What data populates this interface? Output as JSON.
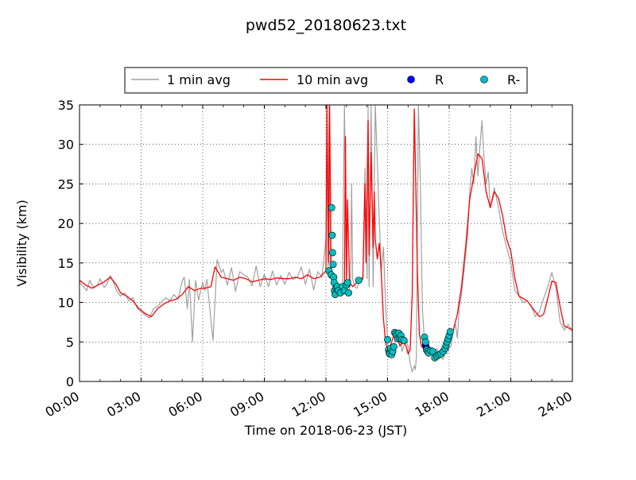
{
  "chart_data": {
    "type": "line",
    "title": "pwd52_20180623.txt",
    "xlabel": "Time on 2018-06-23 (JST)",
    "ylabel": "Visibility (km)",
    "xlim": [
      0,
      24
    ],
    "ylim": [
      0,
      35
    ],
    "x_ticks": [
      0,
      3,
      6,
      9,
      12,
      15,
      18,
      21,
      24
    ],
    "x_tick_labels": [
      "00:00",
      "03:00",
      "06:00",
      "09:00",
      "12:00",
      "15:00",
      "18:00",
      "21:00",
      "24:00"
    ],
    "y_ticks": [
      0,
      5,
      10,
      15,
      20,
      25,
      30,
      35
    ],
    "y_tick_labels": [
      "0",
      "5",
      "10",
      "15",
      "20",
      "25",
      "30",
      "35"
    ],
    "grid": true,
    "legend_position": "top",
    "series": [
      {
        "name": "1 min avg",
        "kind": "line",
        "color": "#a0a0a0",
        "x": [
          0,
          0.2,
          0.35,
          0.5,
          0.7,
          0.9,
          1.0,
          1.2,
          1.35,
          1.5,
          1.65,
          1.8,
          2.0,
          2.2,
          2.4,
          2.6,
          2.8,
          3.0,
          3.2,
          3.4,
          3.6,
          3.8,
          4.0,
          4.2,
          4.4,
          4.6,
          4.8,
          5.0,
          5.1,
          5.25,
          5.35,
          5.5,
          5.65,
          5.8,
          6.0,
          6.1,
          6.2,
          6.3,
          6.5,
          6.7,
          6.9,
          7.0,
          7.2,
          7.4,
          7.6,
          7.8,
          8.0,
          8.2,
          8.4,
          8.6,
          8.8,
          9.0,
          9.2,
          9.4,
          9.6,
          9.8,
          10.0,
          10.2,
          10.4,
          10.6,
          10.8,
          11.0,
          11.2,
          11.4,
          11.6,
          11.8,
          12.0,
          12.05,
          12.1,
          12.15,
          12.2,
          12.3,
          12.4,
          12.5,
          12.6,
          12.7,
          12.8,
          12.9,
          13.0,
          13.1,
          13.2,
          13.25,
          13.3,
          13.4,
          13.5,
          13.6,
          13.7,
          13.8,
          13.9,
          14.0,
          14.05,
          14.1,
          14.2,
          14.3,
          14.4,
          14.5,
          14.6,
          14.7,
          14.8,
          14.9,
          15.0,
          15.1,
          15.2,
          15.3,
          15.4,
          15.5,
          15.6,
          15.7,
          15.8,
          15.9,
          16.0,
          16.1,
          16.2,
          16.3,
          16.35,
          16.4,
          16.5,
          16.6,
          16.7,
          16.8,
          16.9,
          17.0,
          17.1,
          17.2,
          17.3,
          17.4,
          17.5,
          17.6,
          17.7,
          17.8,
          17.9,
          18.0,
          18.1,
          18.2,
          18.3,
          18.4,
          18.5,
          18.6,
          18.7,
          18.8,
          18.9,
          19.0,
          19.1,
          19.2,
          19.3,
          19.4,
          19.5,
          19.6,
          19.7,
          19.8,
          19.9,
          20.0,
          20.2,
          20.4,
          20.6,
          20.8,
          21.0,
          21.2,
          21.4,
          21.6,
          21.8,
          22.0,
          22.2,
          22.4,
          22.6,
          22.8,
          23.0,
          23.2,
          23.4,
          23.6,
          23.8,
          24.0
        ],
        "y": [
          12.5,
          12.0,
          11.5,
          12.8,
          11.8,
          12.3,
          13.0,
          11.9,
          12.4,
          13.4,
          12.6,
          11.5,
          10.8,
          11.2,
          10.2,
          10.6,
          9.3,
          8.8,
          8.4,
          8.0,
          9.2,
          9.5,
          10.1,
          10.6,
          10.2,
          11.0,
          10.4,
          12.7,
          13.2,
          9.2,
          12.9,
          5.0,
          12.8,
          10.3,
          12.6,
          11.5,
          12.9,
          10.3,
          5.2,
          15.4,
          13.8,
          14.2,
          12.2,
          14.4,
          11.4,
          13.9,
          13.5,
          13.2,
          12.1,
          14.6,
          12.0,
          13.6,
          12.0,
          14.0,
          12.2,
          13.4,
          12.3,
          13.8,
          12.9,
          13.2,
          14.5,
          12.3,
          14.2,
          11.6,
          13.9,
          13.2,
          18.0,
          35.0,
          14.0,
          35.0,
          15.0,
          13.0,
          11.0,
          11.8,
          12.5,
          11.2,
          12.0,
          35.0,
          12.0,
          11.0,
          12.5,
          25.0,
          13.0,
          12.0,
          11.8,
          12.5,
          12.8,
          13.5,
          27.0,
          13.0,
          35.0,
          12.0,
          35.0,
          12.0,
          35.0,
          28.0,
          20.0,
          14.0,
          17.0,
          10.0,
          5.0,
          3.2,
          4.0,
          4.6,
          5.5,
          6.2,
          5.8,
          3.8,
          4.6,
          5.2,
          4.5,
          2.3,
          1.2,
          2.0,
          1.5,
          3.0,
          35.0,
          25.0,
          9.0,
          5.0,
          3.8,
          4.2,
          3.5,
          4.0,
          3.2,
          4.2,
          3.4,
          3.0,
          2.8,
          3.6,
          3.5,
          4.2,
          4.5,
          6.5,
          7.2,
          5.5,
          9.5,
          11.0,
          13.5,
          16.0,
          18.5,
          24.0,
          27.0,
          25.0,
          31.0,
          26.0,
          30.0,
          33.0,
          28.0,
          25.0,
          26.5,
          22.0,
          24.5,
          22.0,
          19.0,
          17.0,
          15.0,
          11.5,
          10.8,
          10.0,
          10.2,
          9.5,
          8.2,
          8.9,
          10.5,
          12.0,
          13.8,
          11.8,
          7.5,
          6.5,
          7.2,
          6.4
        ]
      },
      {
        "name": "10 min avg",
        "kind": "line",
        "color": "#ff0000",
        "x": [
          0,
          0.3,
          0.6,
          0.9,
          1.2,
          1.5,
          1.8,
          2.0,
          2.3,
          2.6,
          2.9,
          3.2,
          3.5,
          3.8,
          4.1,
          4.4,
          4.7,
          5.0,
          5.3,
          5.6,
          5.9,
          6.1,
          6.4,
          6.6,
          6.9,
          7.2,
          7.5,
          7.8,
          8.1,
          8.4,
          8.7,
          9.0,
          9.3,
          9.6,
          9.9,
          10.2,
          10.5,
          10.8,
          11.1,
          11.4,
          11.7,
          12.0,
          12.05,
          12.12,
          12.18,
          12.25,
          12.35,
          12.5,
          12.7,
          12.9,
          12.95,
          13.0,
          13.05,
          13.15,
          13.3,
          13.5,
          13.7,
          13.8,
          13.9,
          13.95,
          14.05,
          14.1,
          14.2,
          14.3,
          14.35,
          14.4,
          14.5,
          14.6,
          14.7,
          14.8,
          14.9,
          15.0,
          15.1,
          15.2,
          15.3,
          15.4,
          15.5,
          15.6,
          15.7,
          15.8,
          15.9,
          16.0,
          16.1,
          16.2,
          16.3,
          16.35,
          16.45,
          16.55,
          16.65,
          16.8,
          17.0,
          17.2,
          17.4,
          17.6,
          17.8,
          18.0,
          18.2,
          18.4,
          18.6,
          18.8,
          19.0,
          19.2,
          19.4,
          19.6,
          19.8,
          20.0,
          20.2,
          20.4,
          20.6,
          20.8,
          21.0,
          21.2,
          21.4,
          21.6,
          21.8,
          22.0,
          22.2,
          22.4,
          22.6,
          22.8,
          23.0,
          23.2,
          23.4,
          23.6,
          23.8,
          24.0
        ],
        "y": [
          12.8,
          12.2,
          11.8,
          12.2,
          12.6,
          13.2,
          12.2,
          11.2,
          10.8,
          10.2,
          9.2,
          8.6,
          8.2,
          9.2,
          9.8,
          10.2,
          10.4,
          11.0,
          12.0,
          11.5,
          11.8,
          11.8,
          12.0,
          14.5,
          13.2,
          13.0,
          12.8,
          13.2,
          13.0,
          12.6,
          12.8,
          13.0,
          12.9,
          13.1,
          13.0,
          13.0,
          13.2,
          13.0,
          13.5,
          13.0,
          13.2,
          14.0,
          35.0,
          15.0,
          35.0,
          14.0,
          12.0,
          11.8,
          12.0,
          12.5,
          31.0,
          13.0,
          23.0,
          12.5,
          12.0,
          12.5,
          12.8,
          13.0,
          25.0,
          15.0,
          33.0,
          16.0,
          29.0,
          17.0,
          24.0,
          18.0,
          15.5,
          17.5,
          13.5,
          8.0,
          5.0,
          4.0,
          4.3,
          5.0,
          5.8,
          6.0,
          5.5,
          4.5,
          4.8,
          5.0,
          4.5,
          3.5,
          4.0,
          11.0,
          34.5,
          28.0,
          14.0,
          6.0,
          4.5,
          4.0,
          3.8,
          3.6,
          3.4,
          3.6,
          4.0,
          5.0,
          6.5,
          8.5,
          12.0,
          17.0,
          23.0,
          26.0,
          28.8,
          28.2,
          24.0,
          22.0,
          24.0,
          23.2,
          21.0,
          18.0,
          16.5,
          13.0,
          10.8,
          10.5,
          10.2,
          9.5,
          8.8,
          8.2,
          8.5,
          10.5,
          12.7,
          12.5,
          9.5,
          7.0,
          6.8,
          6.5
        ]
      },
      {
        "name": "R",
        "kind": "points",
        "color": "#0000ff",
        "x": [
          16.85,
          16.9
        ],
        "y": [
          4.6,
          4.2
        ]
      },
      {
        "name": "R-",
        "kind": "points",
        "color": "#00bfbf",
        "x": [
          12.15,
          12.25,
          12.28,
          12.3,
          12.32,
          12.35,
          12.38,
          12.4,
          12.42,
          12.45,
          12.5,
          12.55,
          12.6,
          12.7,
          12.8,
          12.9,
          13.0,
          13.05,
          13.1,
          13.6,
          15.0,
          15.05,
          15.08,
          15.1,
          15.15,
          15.2,
          15.25,
          15.3,
          15.35,
          15.4,
          15.45,
          15.5,
          15.55,
          15.6,
          15.65,
          15.7,
          15.8,
          16.8,
          16.85,
          16.9,
          16.95,
          17.0,
          17.1,
          17.2,
          17.3,
          17.4,
          17.5,
          17.6,
          17.7,
          17.8,
          17.85,
          17.9,
          17.95,
          18.0,
          18.05
        ],
        "y": [
          14.0,
          13.5,
          22.0,
          18.5,
          16.3,
          14.8,
          13.2,
          12.5,
          11.5,
          11.0,
          11.8,
          12.0,
          11.5,
          11.2,
          12.0,
          11.5,
          12.2,
          12.5,
          11.2,
          12.8,
          5.3,
          4.0,
          3.6,
          3.5,
          4.2,
          3.4,
          3.8,
          4.4,
          6.2,
          6.0,
          5.8,
          5.4,
          6.1,
          5.5,
          5.8,
          5.3,
          5.2,
          5.6,
          5.0,
          4.0,
          3.8,
          3.6,
          3.9,
          3.8,
          3.0,
          3.2,
          3.4,
          3.5,
          3.8,
          4.2,
          4.6,
          5.0,
          5.4,
          5.8,
          6.3
        ]
      }
    ]
  }
}
